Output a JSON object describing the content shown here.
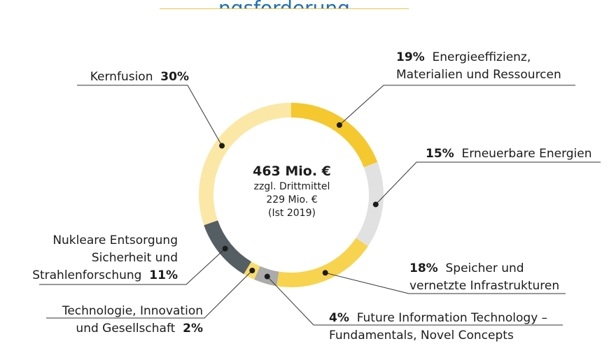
{
  "title": "ngsforderung",
  "chart_data": {
    "type": "pie",
    "variant": "donut",
    "center": {
      "total": "463 Mio. €",
      "lines": [
        "zzgl. Drittmittel",
        "229 Mio. €",
        "(Ist 2019)"
      ]
    },
    "slices": [
      {
        "key": "energie",
        "pct": 19,
        "value_label": "19%",
        "lines": [
          "Energieeffizienz,",
          "Materialien und Ressourcen"
        ],
        "color": "#f4c82e"
      },
      {
        "key": "erneuerbar",
        "pct": 15,
        "value_label": "15%",
        "lines": [
          "Erneuerbare Energien"
        ],
        "color": "#e1e1e1"
      },
      {
        "key": "speicher",
        "pct": 18,
        "value_label": "18%",
        "lines": [
          "Speicher und",
          "vernetzte Infrastrukturen"
        ],
        "color": "#f7d34f"
      },
      {
        "key": "fit",
        "pct": 4,
        "value_label": "4%",
        "lines": [
          "Future Information Technology –",
          "Fundamentals, Novel Concepts"
        ],
        "color": "#ababab"
      },
      {
        "key": "tig",
        "pct": 2,
        "value_label": "2%",
        "lines": [
          "Technologie, Innovation",
          "und Gesellschaft"
        ],
        "color": "#f9dd6c"
      },
      {
        "key": "nukleare",
        "pct": 11,
        "value_label": "11%",
        "lines": [
          "Nukleare Entsorgung",
          "Sicherheit und",
          "Strahlenforschung"
        ],
        "color": "#555e63"
      },
      {
        "key": "kernfusion",
        "pct": 30,
        "value_label": "30%",
        "lines": [
          "Kernfusion"
        ],
        "color": "#fbe8a6"
      }
    ]
  }
}
